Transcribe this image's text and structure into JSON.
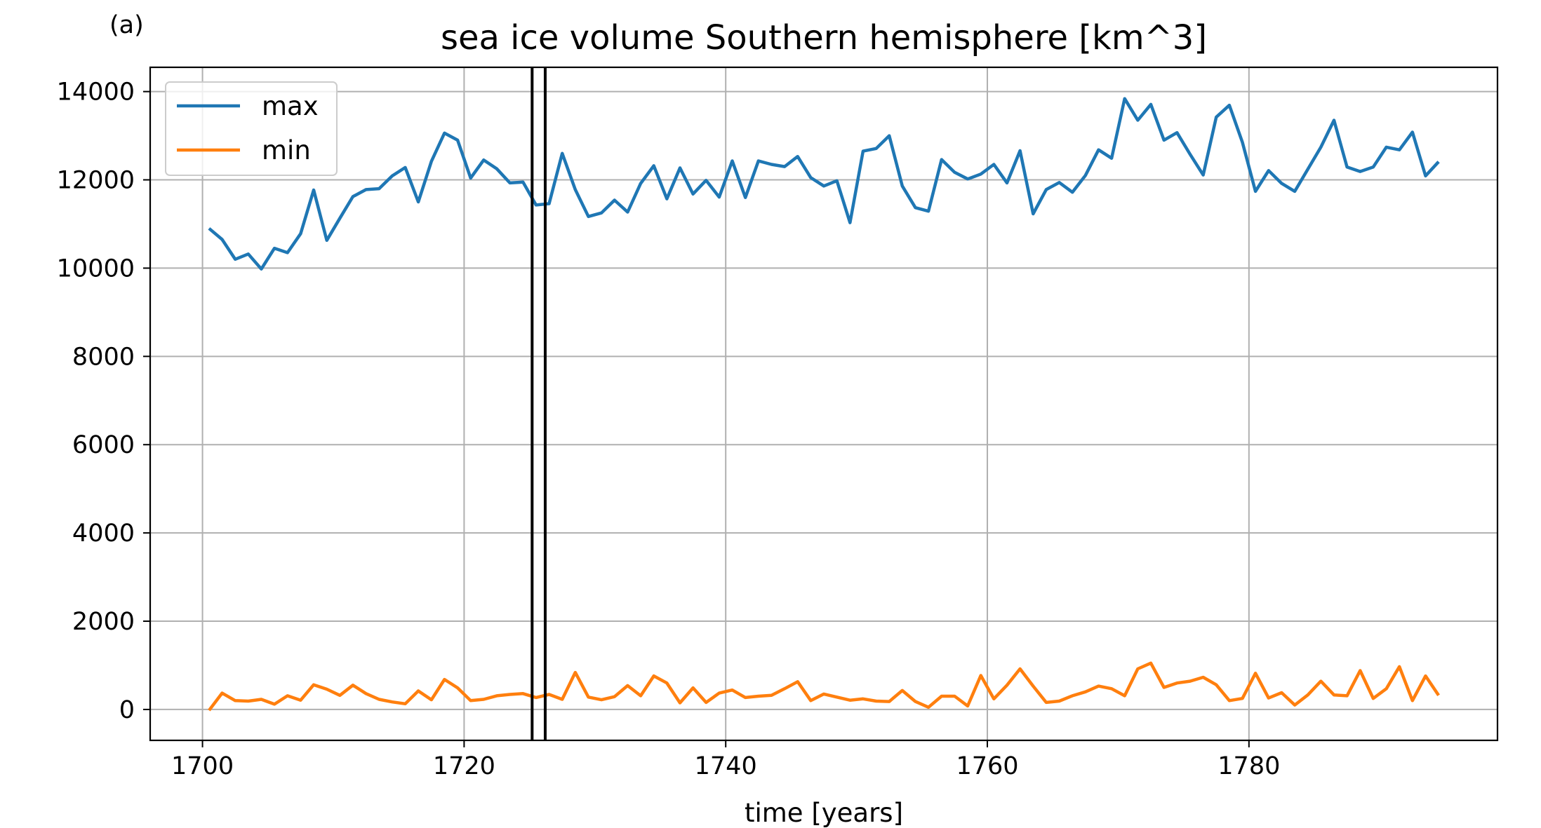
{
  "chart_data": {
    "type": "line",
    "panel_label": "(a)",
    "title": "sea ice volume Southern hemisphere [km^3]",
    "xlabel": "time [years]",
    "ylabel": "",
    "xlim": [
      1696,
      1799
    ],
    "ylim": [
      -700,
      14550
    ],
    "xticks": [
      1700,
      1720,
      1740,
      1760,
      1780
    ],
    "yticks": [
      0,
      2000,
      4000,
      6000,
      8000,
      10000,
      12000,
      14000
    ],
    "grid": true,
    "legend_position": "upper-left",
    "vertical_lines": [
      1725.2,
      1726.2
    ],
    "vertical_line_color": "#000000",
    "x": [
      1700.5,
      1701.5,
      1702.5,
      1703.5,
      1704.5,
      1705.5,
      1706.5,
      1707.5,
      1708.5,
      1709.5,
      1710.5,
      1711.5,
      1712.5,
      1713.5,
      1714.5,
      1715.5,
      1716.5,
      1717.5,
      1718.5,
      1719.5,
      1720.5,
      1721.5,
      1722.5,
      1723.5,
      1724.5,
      1725.5,
      1726.5,
      1727.5,
      1728.5,
      1729.5,
      1730.5,
      1731.5,
      1732.5,
      1733.5,
      1734.5,
      1735.5,
      1736.5,
      1737.5,
      1738.5,
      1739.5,
      1740.5,
      1741.5,
      1742.5,
      1743.5,
      1744.5,
      1745.5,
      1746.5,
      1747.5,
      1748.5,
      1749.5,
      1750.5,
      1751.5,
      1752.5,
      1753.5,
      1754.5,
      1755.5,
      1756.5,
      1757.5,
      1758.5,
      1759.5,
      1760.5,
      1761.5,
      1762.5,
      1763.5,
      1764.5,
      1765.5,
      1766.5,
      1767.5,
      1768.5,
      1769.5,
      1770.5,
      1771.5,
      1772.5,
      1773.5,
      1774.5,
      1775.5,
      1776.5,
      1777.5,
      1778.5,
      1779.5,
      1780.5,
      1781.5,
      1782.5,
      1783.5,
      1784.5,
      1785.5,
      1786.5,
      1787.5,
      1788.5,
      1789.5,
      1790.5,
      1791.5,
      1792.5,
      1793.5,
      1794.5
    ],
    "series": [
      {
        "name": "max",
        "color": "#1f77b4",
        "values": [
          10900,
          10650,
          10200,
          10320,
          9980,
          10450,
          10350,
          10780,
          11770,
          10630,
          11130,
          11620,
          11780,
          11800,
          12090,
          12280,
          11500,
          12420,
          13060,
          12900,
          12040,
          12450,
          12250,
          11930,
          11950,
          11430,
          11460,
          12600,
          11780,
          11170,
          11250,
          11540,
          11270,
          11920,
          12320,
          11570,
          12270,
          11680,
          11990,
          11610,
          12430,
          11600,
          12430,
          12350,
          12300,
          12530,
          12050,
          11860,
          11980,
          11030,
          12650,
          12710,
          13000,
          11860,
          11370,
          11290,
          12460,
          12170,
          12020,
          12130,
          12350,
          11930,
          12660,
          11230,
          11780,
          11940,
          11720,
          12100,
          12680,
          12490,
          13840,
          13350,
          13710,
          12900,
          13070,
          12580,
          12110,
          13420,
          13690,
          12850,
          11740,
          12210,
          11920,
          11740,
          12240,
          12740,
          13350,
          12290,
          12190,
          12290,
          12740,
          12680,
          13080,
          12090,
          12410
        ]
      },
      {
        "name": "min",
        "color": "#ff7f0e",
        "values": [
          -20,
          370,
          200,
          190,
          230,
          120,
          310,
          210,
          560,
          460,
          320,
          550,
          360,
          230,
          170,
          130,
          420,
          220,
          680,
          490,
          200,
          230,
          310,
          340,
          360,
          270,
          340,
          230,
          840,
          280,
          220,
          290,
          540,
          310,
          760,
          600,
          150,
          490,
          160,
          370,
          440,
          270,
          300,
          320,
          470,
          630,
          200,
          350,
          280,
          210,
          240,
          190,
          180,
          430,
          180,
          50,
          300,
          300,
          80,
          770,
          240,
          550,
          920,
          530,
          160,
          190,
          310,
          400,
          530,
          470,
          310,
          920,
          1050,
          500,
          600,
          640,
          730,
          560,
          200,
          250,
          820,
          260,
          380,
          100,
          330,
          640,
          330,
          310,
          880,
          250,
          470,
          970,
          200,
          760,
          320
        ]
      }
    ]
  }
}
